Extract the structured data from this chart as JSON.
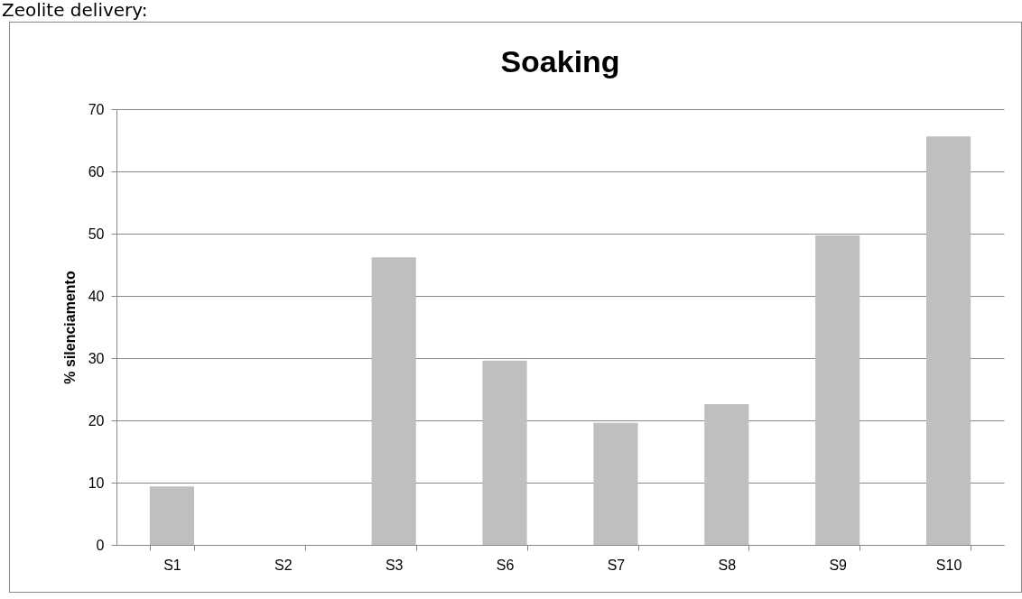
{
  "chart_data": {
    "type": "bar",
    "title": "Soaking",
    "ylabel": "% silenciamento",
    "annotations": [
      "Zeolite delivery:"
    ],
    "categories": [
      "S1",
      "S2",
      "S3",
      "S6",
      "S7",
      "S8",
      "S9",
      "S10"
    ],
    "values": [
      9.4,
      0,
      46.2,
      29.6,
      19.6,
      22.6,
      49.7,
      65.6
    ],
    "color": "#bfbfbf",
    "ylim": [
      0,
      70
    ],
    "yticks": [
      0,
      10,
      20,
      30,
      40,
      50,
      60,
      70
    ],
    "grid": "y"
  }
}
